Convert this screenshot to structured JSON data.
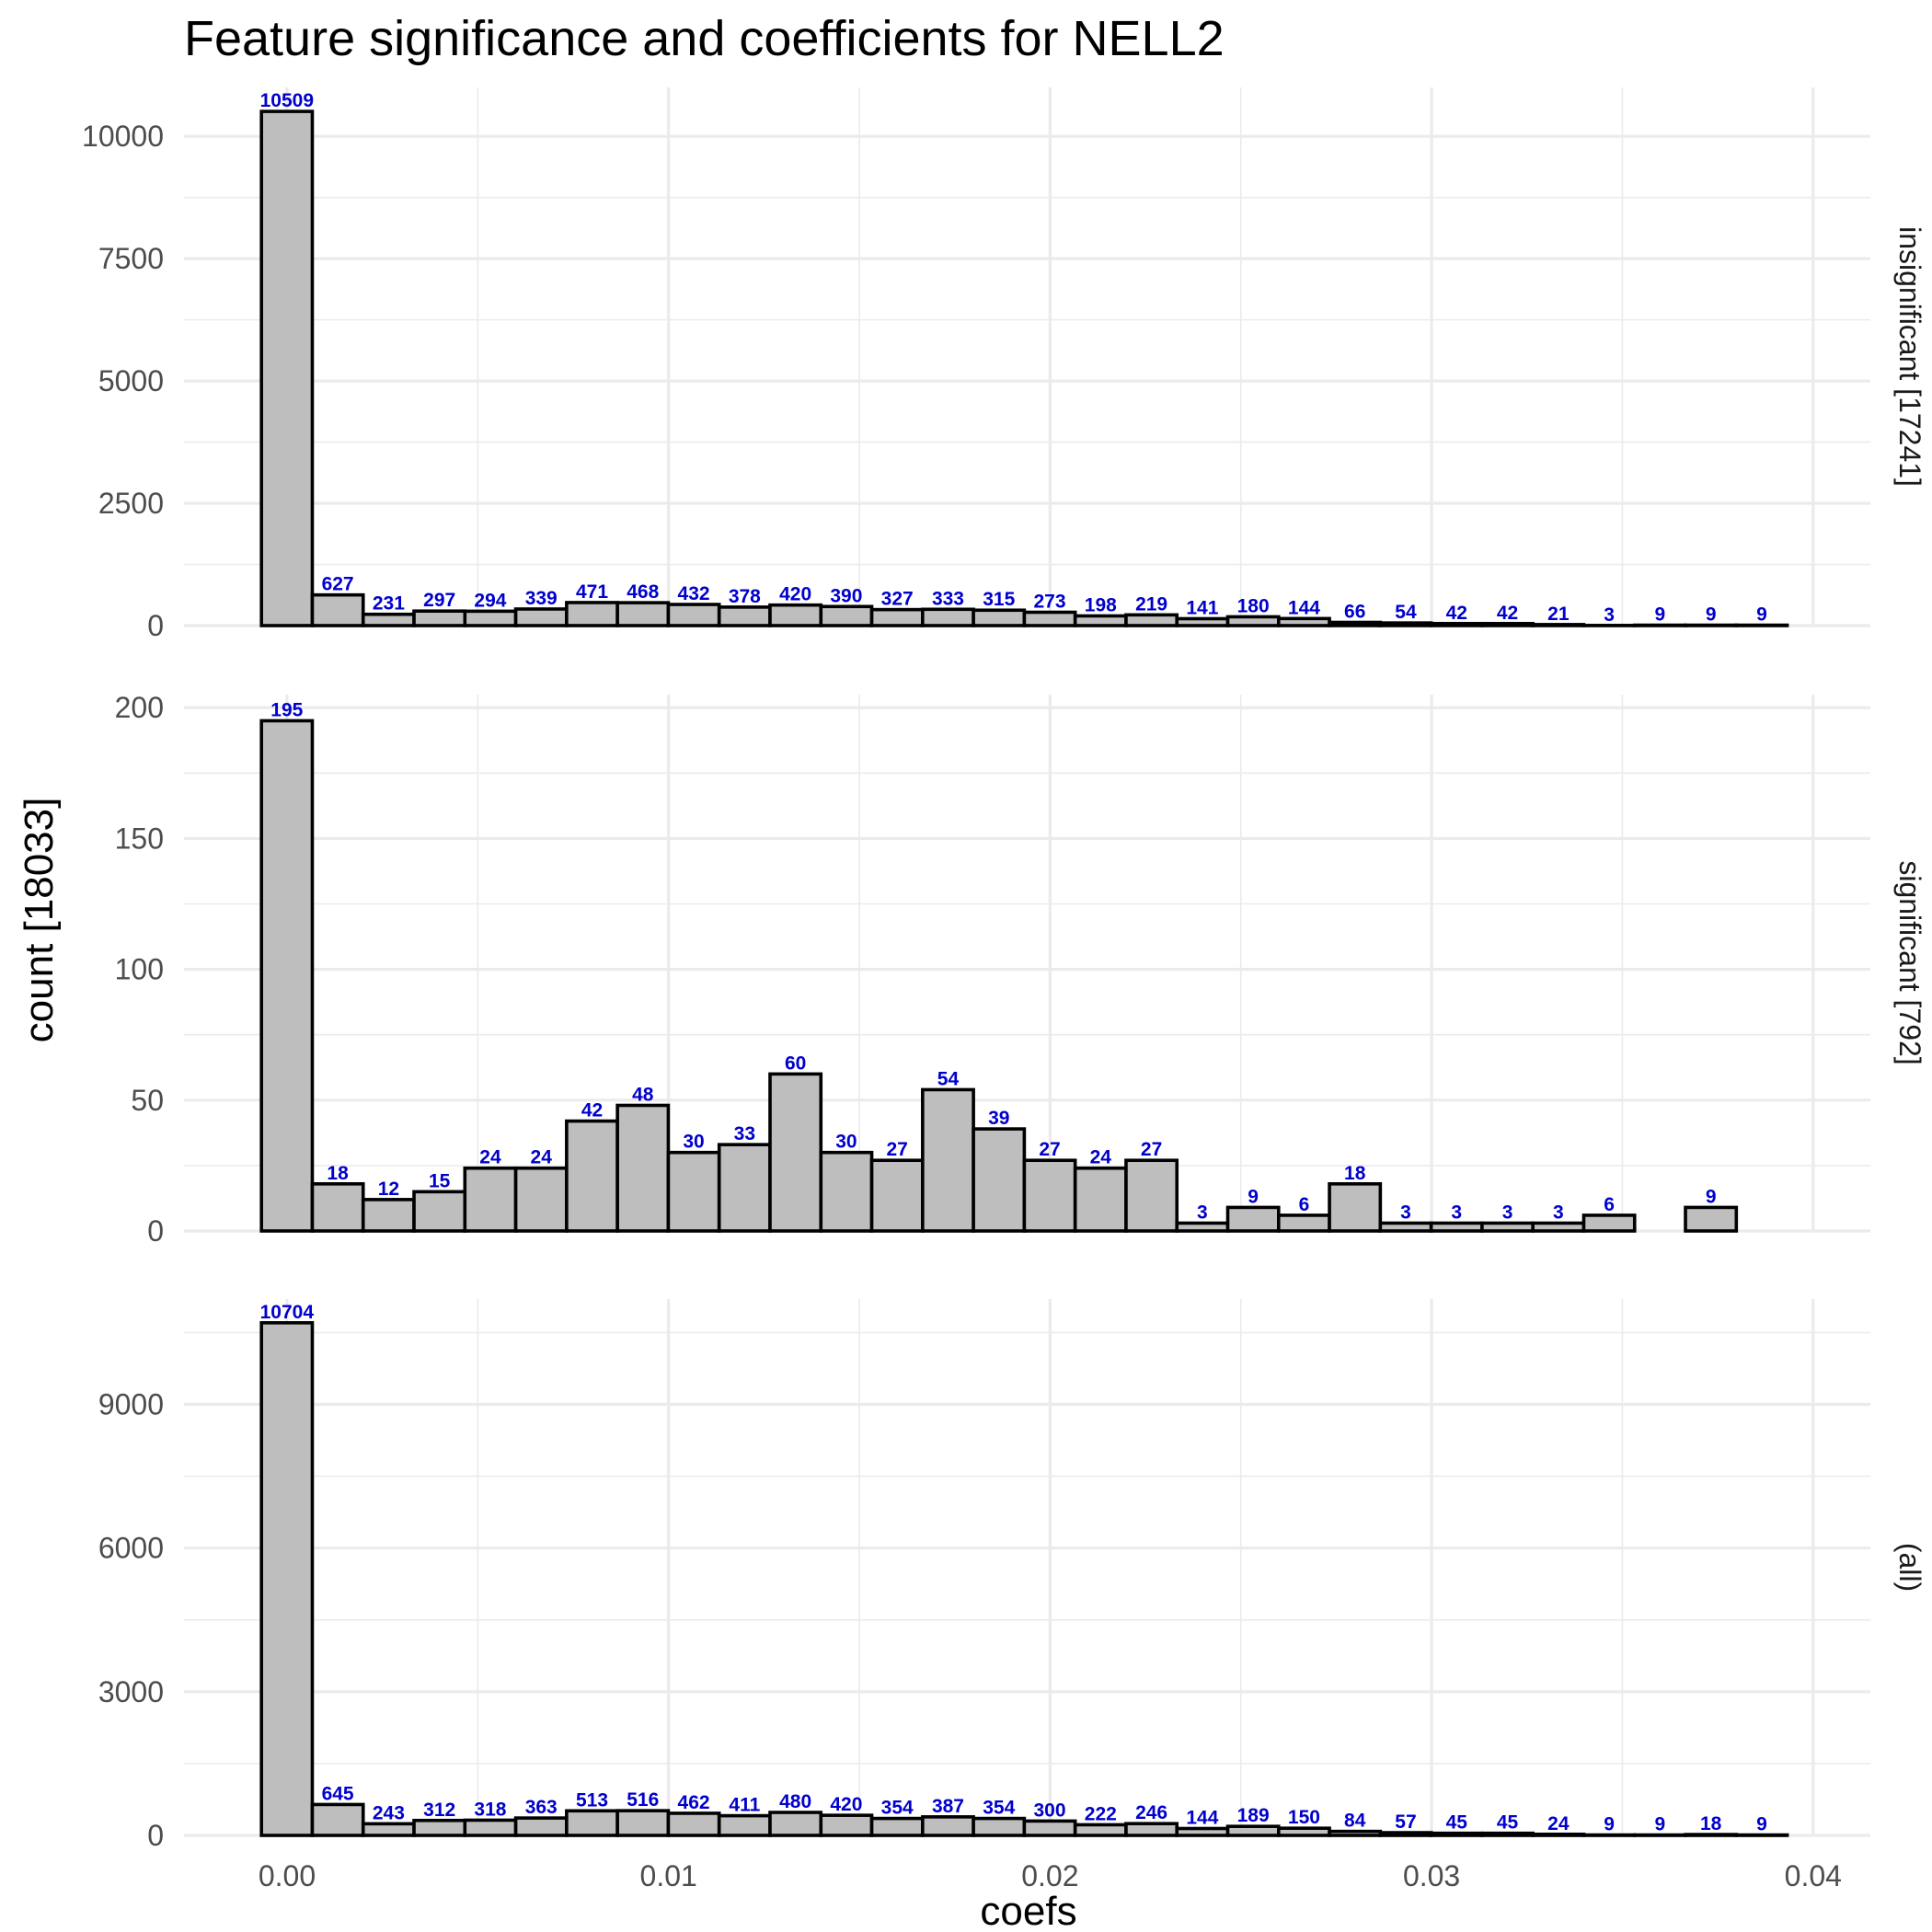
{
  "chart_data": {
    "type": "bar",
    "title": "Feature significance and coefficients for NELL2",
    "xlabel": "coefs",
    "ylabel": "count [18033]",
    "xlim": [
      -0.0027,
      0.0415
    ],
    "x_ticks": [
      0.0,
      0.01,
      0.02,
      0.03,
      0.04
    ],
    "x_tick_labels": [
      "0.00",
      "0.01",
      "0.02",
      "0.03",
      "0.04"
    ],
    "bin_start": -0.00067,
    "bin_width": 0.001333,
    "grid": true,
    "bar_fill": "#bebebe",
    "bar_outline": "#000000",
    "label_color": "#0000cd",
    "panels": [
      {
        "name": "insignificant [17241]",
        "ylim": [
          0,
          11000
        ],
        "y_ticks": [
          0,
          2500,
          5000,
          7500,
          10000
        ],
        "y_tick_labels": [
          "0",
          "2500",
          "5000",
          "7500",
          "10000"
        ],
        "values": [
          10509,
          627,
          231,
          297,
          294,
          339,
          471,
          468,
          432,
          378,
          420,
          390,
          327,
          333,
          315,
          273,
          198,
          219,
          141,
          180,
          144,
          66,
          54,
          42,
          42,
          21,
          3,
          9,
          9,
          9
        ],
        "labels": [
          "10509",
          "627",
          "231",
          "297",
          "294",
          "339",
          "471",
          "468",
          "432",
          "378",
          "420",
          "390",
          "327",
          "333",
          "315",
          "273",
          "198",
          "219",
          "141",
          "180",
          "144",
          "66",
          "54",
          "42",
          "42",
          "21",
          "3",
          "9",
          "9",
          "9"
        ]
      },
      {
        "name": "significant [792]",
        "ylim": [
          0,
          205
        ],
        "y_ticks": [
          0,
          50,
          100,
          150,
          200
        ],
        "y_tick_labels": [
          "0",
          "50",
          "100",
          "150",
          "200"
        ],
        "values": [
          195,
          18,
          12,
          15,
          24,
          24,
          42,
          48,
          30,
          33,
          60,
          30,
          27,
          54,
          39,
          27,
          24,
          27,
          3,
          9,
          6,
          18,
          3,
          3,
          3,
          3,
          6,
          0,
          9,
          0
        ],
        "labels": [
          "195",
          "18",
          "12",
          "15",
          "24",
          "24",
          "42",
          "48",
          "30",
          "33",
          "60",
          "30",
          "27",
          "54",
          "39",
          "27",
          "24",
          "27",
          "3",
          "9",
          "6",
          "18",
          "3",
          "3",
          "3",
          "3",
          "6",
          "",
          "9",
          ""
        ]
      },
      {
        "name": "(all)",
        "ylim": [
          0,
          11200
        ],
        "y_ticks": [
          0,
          3000,
          6000,
          9000
        ],
        "y_tick_labels": [
          "0",
          "3000",
          "6000",
          "9000"
        ],
        "values": [
          10704,
          645,
          243,
          312,
          318,
          363,
          513,
          516,
          462,
          411,
          480,
          420,
          354,
          387,
          354,
          300,
          222,
          246,
          144,
          189,
          150,
          84,
          57,
          45,
          45,
          24,
          9,
          9,
          18,
          9
        ],
        "labels": [
          "10704",
          "645",
          "243",
          "312",
          "318",
          "363",
          "513",
          "516",
          "462",
          "411",
          "480",
          "420",
          "354",
          "387",
          "354",
          "300",
          "222",
          "246",
          "144",
          "189",
          "150",
          "84",
          "57",
          "45",
          "45",
          "24",
          "9",
          "9",
          "18",
          "9"
        ]
      }
    ]
  }
}
